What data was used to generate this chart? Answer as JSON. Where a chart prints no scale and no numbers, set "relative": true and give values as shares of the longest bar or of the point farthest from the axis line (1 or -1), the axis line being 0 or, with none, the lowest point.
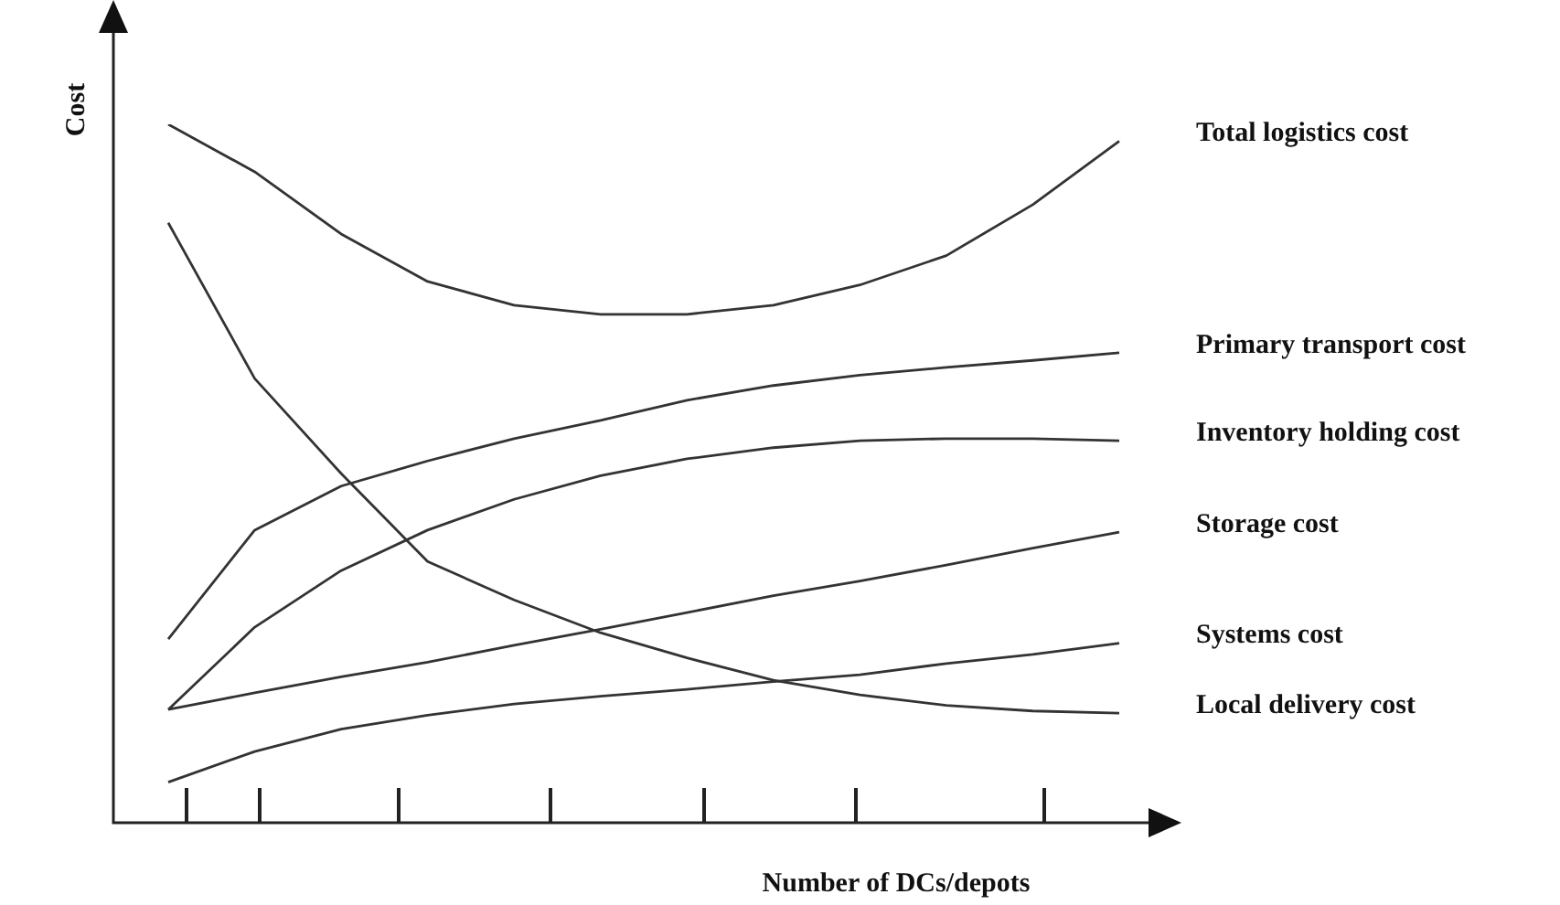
{
  "chart_data": {
    "type": "line",
    "relative": true,
    "xlabel": "Number of DCs/depots",
    "ylabel": "Cost",
    "categories": [
      null,
      null,
      null,
      null,
      null,
      null,
      null,
      null,
      null,
      null,
      null,
      null
    ],
    "grid": false,
    "legend": false,
    "tick_labels": false,
    "marker": "none",
    "line_style": "solid",
    "series": [
      {
        "name": "Total logistics cost",
        "color": "#333333",
        "values": [
          1,
          0.932,
          0.843,
          0.775,
          0.741,
          0.728,
          0.728,
          0.741,
          0.77,
          0.812,
          0.885,
          0.976
        ]
      },
      {
        "name": "Primary transport cost",
        "color": "#333333",
        "values": [
          0.263,
          0.419,
          0.482,
          0.518,
          0.55,
          0.576,
          0.605,
          0.626,
          0.641,
          0.652,
          0.662,
          0.673
        ]
      },
      {
        "name": "Inventory holding cost",
        "color": "#333333",
        "values": [
          0.162,
          0.28,
          0.361,
          0.419,
          0.463,
          0.497,
          0.521,
          0.537,
          0.547,
          0.55,
          0.55,
          0.547
        ]
      },
      {
        "name": "Storage cost",
        "color": "#333333",
        "values": [
          0.162,
          0.186,
          0.209,
          0.23,
          0.254,
          0.277,
          0.301,
          0.325,
          0.346,
          0.369,
          0.393,
          0.416
        ]
      },
      {
        "name": "Systems cost",
        "color": "#333333",
        "values": [
          0.058,
          0.102,
          0.134,
          0.154,
          0.17,
          0.181,
          0.191,
          0.202,
          0.212,
          0.228,
          0.241,
          0.257
        ]
      },
      {
        "name": "Local delivery cost",
        "color": "#333333",
        "values": [
          0.859,
          0.636,
          0.5,
          0.374,
          0.319,
          0.272,
          0.236,
          0.204,
          0.183,
          0.168,
          0.16,
          0.157
        ]
      }
    ]
  }
}
